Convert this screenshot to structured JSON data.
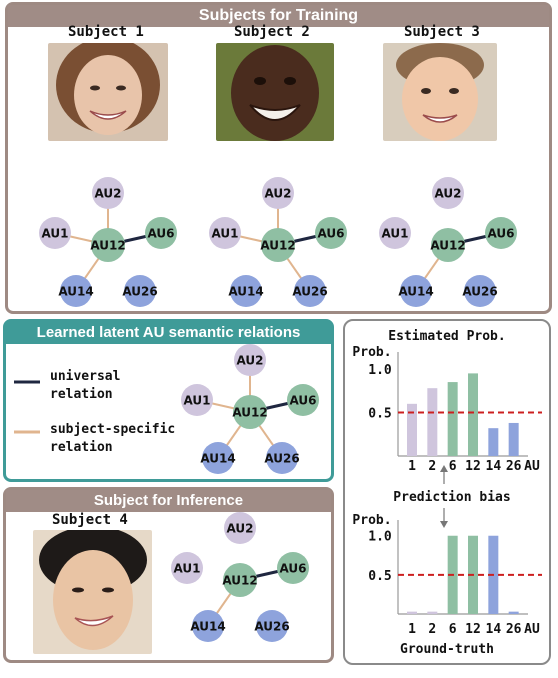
{
  "training": {
    "title": "Subjects for Training",
    "subjects": [
      {
        "name": "Subject 1",
        "face": "smiling-woman-photo",
        "universal": [
          [
            "AU12",
            "AU6"
          ]
        ],
        "specific": [
          [
            "AU1",
            "AU12"
          ],
          [
            "AU2",
            "AU12"
          ],
          [
            "AU14",
            "AU12"
          ]
        ]
      },
      {
        "name": "Subject 2",
        "face": "smiling-child-photo",
        "universal": [
          [
            "AU12",
            "AU6"
          ]
        ],
        "specific": [
          [
            "AU1",
            "AU12"
          ],
          [
            "AU2",
            "AU12"
          ],
          [
            "AU26",
            "AU12"
          ]
        ]
      },
      {
        "name": "Subject 3",
        "face": "smiling-boy-photo",
        "universal": [
          [
            "AU12",
            "AU6"
          ]
        ],
        "specific": [
          [
            "AU14",
            "AU12"
          ]
        ]
      }
    ]
  },
  "learned": {
    "title": "Learned latent AU semantic relations",
    "legend": {
      "universal": [
        "universal",
        "relation"
      ],
      "specific": [
        "subject-specific",
        "relation"
      ]
    },
    "universal": [
      [
        "AU12",
        "AU6"
      ]
    ],
    "specific": [
      [
        "AU1",
        "AU12"
      ],
      [
        "AU2",
        "AU12"
      ],
      [
        "AU14",
        "AU12"
      ],
      [
        "AU26",
        "AU12"
      ]
    ]
  },
  "inference": {
    "title": "Subject for Inference",
    "subject": {
      "name": "Subject 4",
      "face": "smiling-man-photo"
    },
    "universal": [
      [
        "AU12",
        "AU6"
      ]
    ],
    "specific": [
      [
        "AU14",
        "AU12"
      ]
    ]
  },
  "au_labels": {
    "AU1": "AU1",
    "AU2": "AU2",
    "AU6": "AU6",
    "AU12": "AU12",
    "AU14": "AU14",
    "AU26": "AU26"
  },
  "colors": {
    "training_border": "#9e8a83",
    "training_header": "#a08c86",
    "learned_border": "#3f9b98",
    "learned_header": "#3f9b98",
    "inference_border": "#9e8a83",
    "inference_header": "#a08c86",
    "au_purple": "#cfc5dd",
    "au_green": "#8fbfa3",
    "au_blue": "#8ea3dc",
    "universal_edge": "#1f2740",
    "specific_edge": "#e0b58f",
    "threshold": "#cc1f1f"
  },
  "chart_data": [
    {
      "type": "bar",
      "title": "Estimated Prob.",
      "ylabel": "Prob.",
      "categories": [
        "1",
        "2",
        "6",
        "12",
        "14",
        "26"
      ],
      "values": [
        0.6,
        0.78,
        0.85,
        0.95,
        0.32,
        0.38
      ],
      "bar_colors": [
        "#cfc5dd",
        "#cfc5dd",
        "#8fbfa3",
        "#8fbfa3",
        "#8ea3dc",
        "#8ea3dc"
      ],
      "yticks": [
        "0.5",
        "1.0"
      ],
      "threshold": 0.5,
      "ylim": [
        0,
        1.15
      ],
      "xunit": "AU"
    },
    {
      "type": "bar",
      "title": "Ground-truth",
      "ylabel": "Prob.",
      "categories": [
        "1",
        "2",
        "6",
        "12",
        "14",
        "26"
      ],
      "values": [
        0.03,
        0.03,
        1.0,
        1.0,
        1.0,
        0.03
      ],
      "bar_colors": [
        "#cfc5dd",
        "#cfc5dd",
        "#8fbfa3",
        "#8fbfa3",
        "#8ea3dc",
        "#8ea3dc"
      ],
      "yticks": [
        "0.5",
        "1.0"
      ],
      "threshold": 0.5,
      "ylim": [
        0,
        1.15
      ],
      "xunit": "AU"
    }
  ],
  "prediction_bias": "Prediction bias"
}
